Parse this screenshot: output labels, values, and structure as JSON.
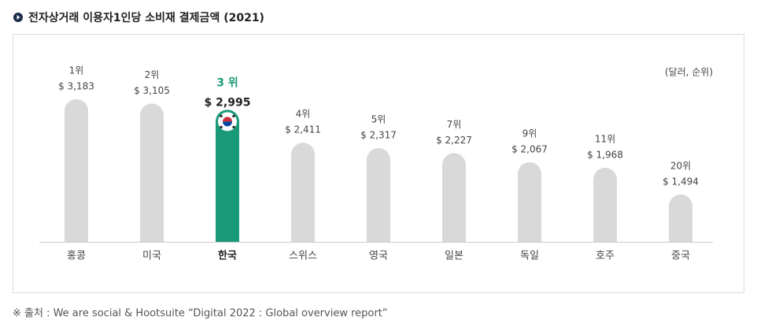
{
  "chart_data": {
    "type": "bar",
    "title": "전자상거래 이용자1인당 소비재 결제금액 (2021)",
    "unit_note": "(달러, 순위)",
    "source": "※ 출처 : We are social & Hootsuite “Digital 2022 : Global overview report”",
    "categories": [
      "홍콩",
      "미국",
      "한국",
      "스위스",
      "영국",
      "일본",
      "독일",
      "호주",
      "중국"
    ],
    "ranks": [
      "1위",
      "2위",
      "3 위",
      "4위",
      "5위",
      "7위",
      "9위",
      "11위",
      "20위"
    ],
    "values": [
      3183,
      3105,
      2995,
      2411,
      2317,
      2227,
      2067,
      1968,
      1494
    ],
    "value_labels": [
      "$ 3,183",
      "$ 3,105",
      "$ 2,995",
      "$ 2,411",
      "$ 2,317",
      "$ 2,227",
      "$ 2,067",
      "$ 1,968",
      "$ 1,494"
    ],
    "colors": [
      "#d9d9d9",
      "#d9d9d9",
      "#1a9a78",
      "#d9d9d9",
      "#d9d9d9",
      "#d9d9d9",
      "#d9d9d9",
      "#d9d9d9",
      "#d9d9d9"
    ],
    "highlight": 2,
    "ylim": [
      655,
      3600
    ]
  }
}
